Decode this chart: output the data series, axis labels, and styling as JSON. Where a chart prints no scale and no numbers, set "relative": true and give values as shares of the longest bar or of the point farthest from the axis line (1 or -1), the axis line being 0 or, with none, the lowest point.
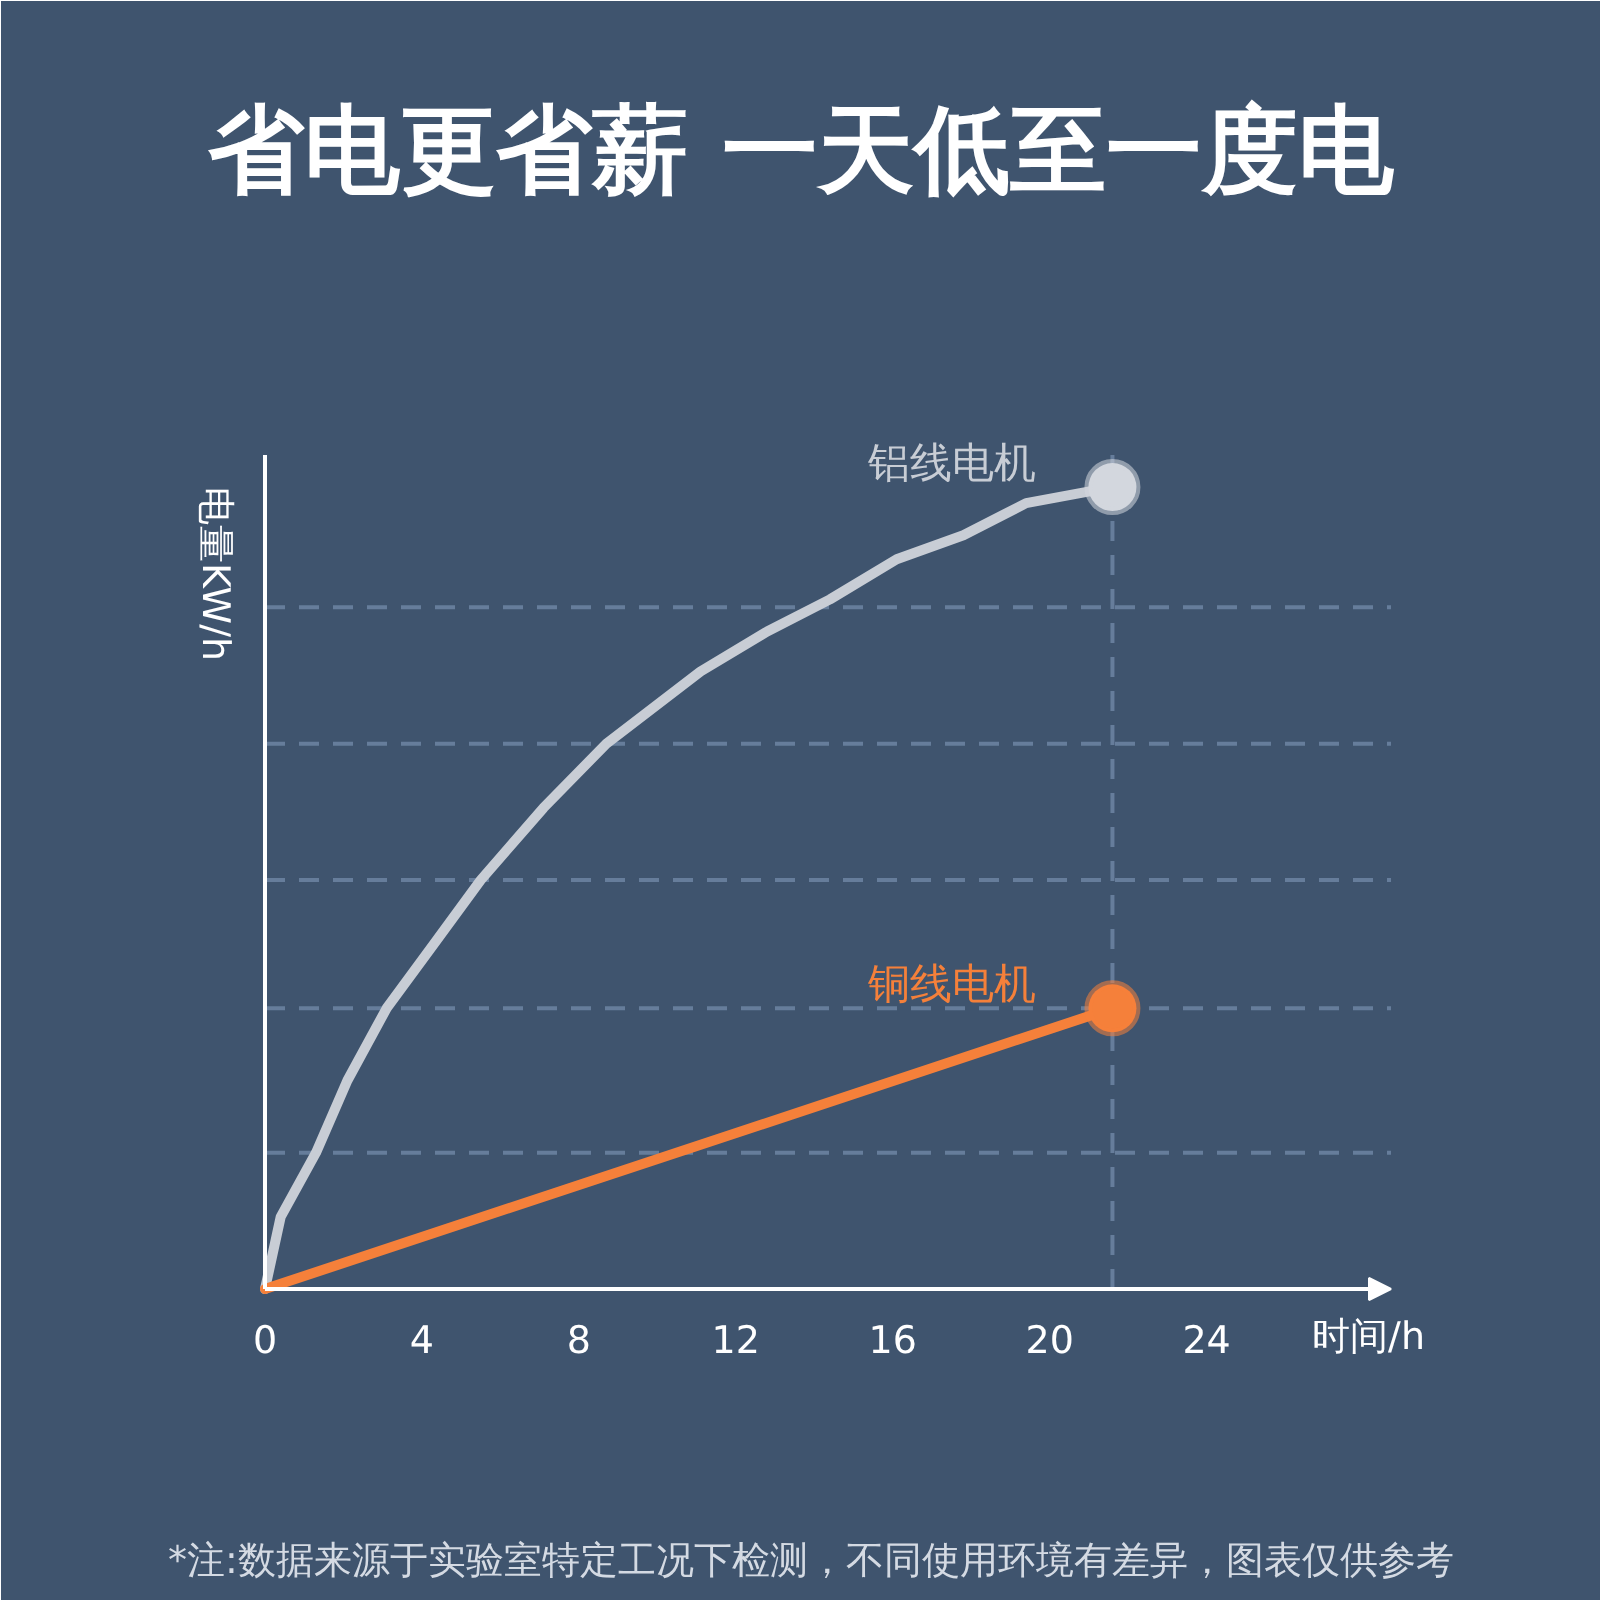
{
  "chart_data": {
    "type": "line",
    "title": "省电更省薪 一天低至一度电",
    "xlabel": "时间/h",
    "ylabel": "电量KW/h",
    "relative": true,
    "xlim": [
      0,
      28.7
    ],
    "xticks": [
      0,
      4,
      8,
      12,
      16,
      20,
      24
    ],
    "series": [
      {
        "name": "铝线电机",
        "type": "line",
        "color": "#c8cdd5",
        "x": [
          0,
          0.4,
          1.3,
          2.1,
          3.1,
          4.3,
          5.5,
          7.1,
          8.7,
          11.1,
          12.8,
          14.4,
          16.1,
          17.8,
          19.4,
          21.6
        ],
        "values": [
          0,
          0.09,
          0.17,
          0.26,
          0.35,
          0.43,
          0.51,
          0.6,
          0.68,
          0.77,
          0.82,
          0.86,
          0.91,
          0.94,
          0.98,
          1
        ]
      },
      {
        "name": "铜线电机",
        "type": "line",
        "color": "#f5803a",
        "x": [
          0,
          21.6
        ],
        "values": [
          0,
          0.35
        ]
      },
      {
        "type": "scatter",
        "marker": "circle",
        "color": "#d3d7de",
        "x": [
          21.6
        ],
        "values": [
          1
        ]
      },
      {
        "type": "scatter",
        "marker": "circle",
        "color": "#f5803a",
        "x": [
          21.6
        ],
        "values": [
          0.35
        ]
      }
    ],
    "ref_lines": [
      {
        "axis": "y",
        "value": 0.17,
        "color": "#667d9b",
        "line_style": "dashed"
      },
      {
        "axis": "y",
        "value": 0.35,
        "color": "#667d9b",
        "line_style": "dashed"
      },
      {
        "axis": "y",
        "value": 0.51,
        "color": "#667d9b",
        "line_style": "dashed"
      },
      {
        "axis": "y",
        "value": 0.68,
        "color": "#667d9b",
        "line_style": "dashed"
      },
      {
        "axis": "y",
        "value": 0.85,
        "color": "#667d9b",
        "line_style": "dashed"
      },
      {
        "axis": "x",
        "value": 21.6,
        "color": "#667d9b",
        "line_style": "dashed"
      }
    ],
    "annotations": [
      "*注:数据来源于实验室特定工况下检测，不同使用环境有差异，图表仅供参考"
    ]
  }
}
